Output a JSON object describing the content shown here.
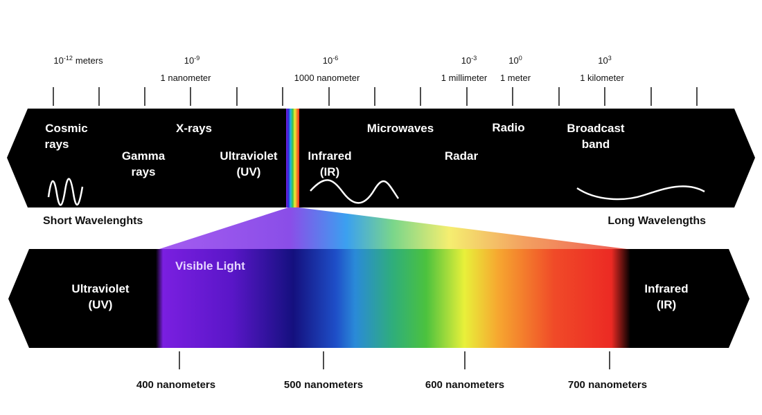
{
  "scale": [
    {
      "base": "10",
      "exponent": "-12",
      "unit": "meters"
    },
    {
      "base": "10",
      "exponent": "-9",
      "unit": "1 nanometer"
    },
    {
      "base": "10",
      "exponent": "-6",
      "unit": "1000 nanometer"
    },
    {
      "base": "10",
      "exponent": "-3",
      "unit": "1 millimeter"
    },
    {
      "base": "10",
      "exponent": "0",
      "unit": "1 meter"
    },
    {
      "base": "10",
      "exponent": "3",
      "unit": "1 kilometer"
    }
  ],
  "spectrum_labels": [
    {
      "lines": [
        "Cosmic",
        "rays"
      ]
    },
    {
      "lines": [
        "X-rays"
      ]
    },
    {
      "lines": [
        "Gamma",
        "rays"
      ]
    },
    {
      "lines": [
        "Ultraviolet",
        "(UV)"
      ]
    },
    {
      "lines": [
        "Infrared",
        "(IR)"
      ]
    },
    {
      "lines": [
        "Microwaves"
      ]
    },
    {
      "lines": [
        "Radar"
      ]
    },
    {
      "lines": [
        "Radio"
      ]
    },
    {
      "lines": [
        "Broadcast",
        "band"
      ]
    }
  ],
  "short_label": "Short Wavelenghts",
  "long_label": "Long Wavelengths",
  "visible": {
    "title": "Visible Light",
    "left": [
      "Ultraviolet",
      "(UV)"
    ],
    "right": [
      "Infrared",
      "(IR)"
    ],
    "wavelengths": [
      "400 nanometers",
      "500 nanometers",
      "600 nanometers",
      "700 nanometers"
    ]
  }
}
